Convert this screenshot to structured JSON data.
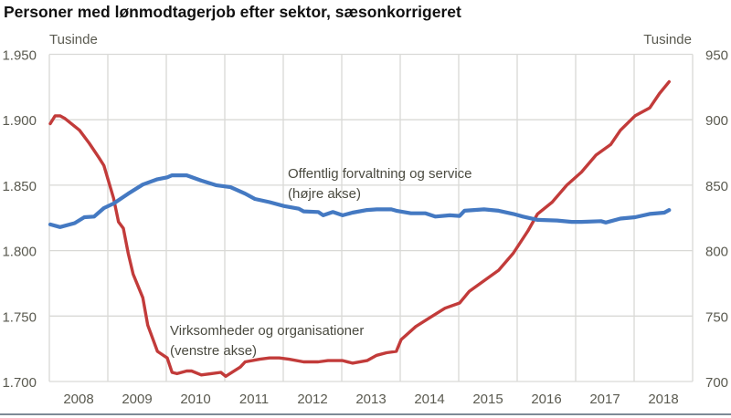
{
  "chart_data": {
    "type": "line",
    "title": "Personer med lønmodtagerjob efter sektor, sæsonkorrigeret",
    "left_axis": {
      "unit": "Tusinde",
      "ylim": [
        1700,
        1950
      ],
      "ticks": [
        "1.700",
        "1.750",
        "1.800",
        "1.850",
        "1.900",
        "1.950"
      ],
      "tick_values": [
        1700,
        1750,
        1800,
        1850,
        1900,
        1950
      ]
    },
    "right_axis": {
      "unit": "Tusinde",
      "ylim": [
        700,
        950
      ],
      "ticks": [
        "700",
        "750",
        "800",
        "850",
        "900",
        "950"
      ],
      "tick_values": [
        700,
        750,
        800,
        850,
        900,
        950
      ]
    },
    "x_ticks": [
      "2008",
      "2009",
      "2010",
      "2011",
      "2012",
      "2013",
      "2014",
      "2015",
      "2016",
      "2017",
      "2018"
    ],
    "xlim": [
      "2008-01",
      "2018-12"
    ],
    "grid": true,
    "series": [
      {
        "name": "Virksomheder og organisationer",
        "name_line2": "(venstre akse)",
        "axis": "left",
        "color": "#C23B3A",
        "points": [
          [
            "2008-01",
            1897
          ],
          [
            "2008-02",
            1903
          ],
          [
            "2008-03",
            1903
          ],
          [
            "2008-04",
            1901
          ],
          [
            "2008-07",
            1892
          ],
          [
            "2008-09",
            1882
          ],
          [
            "2008-11",
            1871
          ],
          [
            "2008-12",
            1865
          ],
          [
            "2009-02",
            1840
          ],
          [
            "2009-03",
            1822
          ],
          [
            "2009-04",
            1817
          ],
          [
            "2009-05",
            1798
          ],
          [
            "2009-06",
            1782
          ],
          [
            "2009-08",
            1764
          ],
          [
            "2009-09",
            1743
          ],
          [
            "2009-11",
            1723
          ],
          [
            "2010-01",
            1718
          ],
          [
            "2010-02",
            1707
          ],
          [
            "2010-03",
            1706
          ],
          [
            "2010-05",
            1708
          ],
          [
            "2010-06",
            1708
          ],
          [
            "2010-08",
            1705
          ],
          [
            "2010-10",
            1706
          ],
          [
            "2010-12",
            1707
          ],
          [
            "2011-01",
            1704
          ],
          [
            "2011-04",
            1711
          ],
          [
            "2011-05",
            1715
          ],
          [
            "2011-08",
            1717
          ],
          [
            "2011-10",
            1718
          ],
          [
            "2011-12",
            1718
          ],
          [
            "2012-02",
            1717
          ],
          [
            "2012-05",
            1715
          ],
          [
            "2012-08",
            1715
          ],
          [
            "2012-10",
            1716
          ],
          [
            "2013-01",
            1716
          ],
          [
            "2013-03",
            1714
          ],
          [
            "2013-06",
            1716
          ],
          [
            "2013-08",
            1720
          ],
          [
            "2013-10",
            1722
          ],
          [
            "2013-12",
            1723
          ],
          [
            "2014-01",
            1732
          ],
          [
            "2014-04",
            1742
          ],
          [
            "2014-07",
            1749
          ],
          [
            "2014-10",
            1756
          ],
          [
            "2015-01",
            1760
          ],
          [
            "2015-03",
            1769
          ],
          [
            "2015-06",
            1777
          ],
          [
            "2015-09",
            1785
          ],
          [
            "2015-12",
            1798
          ],
          [
            "2016-03",
            1815
          ],
          [
            "2016-05",
            1828
          ],
          [
            "2016-08",
            1837
          ],
          [
            "2016-11",
            1850
          ],
          [
            "2017-02",
            1860
          ],
          [
            "2017-05",
            1873
          ],
          [
            "2017-08",
            1881
          ],
          [
            "2017-10",
            1892
          ],
          [
            "2018-01",
            1903
          ],
          [
            "2018-04",
            1909
          ],
          [
            "2018-06",
            1920
          ],
          [
            "2018-08",
            1929
          ]
        ]
      },
      {
        "name": "Offentlig forvaltning og service",
        "name_line2": "(højre akse)",
        "axis": "right",
        "color": "#4479C2",
        "points": [
          [
            "2008-01",
            820
          ],
          [
            "2008-03",
            818
          ],
          [
            "2008-06",
            821
          ],
          [
            "2008-08",
            825.5
          ],
          [
            "2008-10",
            826
          ],
          [
            "2008-12",
            832.5
          ],
          [
            "2009-02",
            836
          ],
          [
            "2009-05",
            843.5
          ],
          [
            "2009-08",
            850.5
          ],
          [
            "2009-11",
            854.5
          ],
          [
            "2010-01",
            856
          ],
          [
            "2010-02",
            857.5
          ],
          [
            "2010-05",
            857.5
          ],
          [
            "2010-08",
            853.5
          ],
          [
            "2010-11",
            850
          ],
          [
            "2011-02",
            848.5
          ],
          [
            "2011-05",
            843.5
          ],
          [
            "2011-07",
            839.5
          ],
          [
            "2011-10",
            837
          ],
          [
            "2012-01",
            834
          ],
          [
            "2012-04",
            832
          ],
          [
            "2012-05",
            830
          ],
          [
            "2012-08",
            829.5
          ],
          [
            "2012-09",
            827
          ],
          [
            "2012-11",
            829.5
          ],
          [
            "2013-01",
            827
          ],
          [
            "2013-03",
            829
          ],
          [
            "2013-06",
            831
          ],
          [
            "2013-08",
            831.5
          ],
          [
            "2013-11",
            831.5
          ],
          [
            "2013-12",
            830.5
          ],
          [
            "2014-03",
            828.5
          ],
          [
            "2014-06",
            828.5
          ],
          [
            "2014-08",
            826
          ],
          [
            "2014-11",
            827
          ],
          [
            "2015-01",
            826.5
          ],
          [
            "2015-02",
            830.5
          ],
          [
            "2015-04",
            831
          ],
          [
            "2015-06",
            831.5
          ],
          [
            "2015-09",
            830.5
          ],
          [
            "2015-12",
            828
          ],
          [
            "2016-02",
            826
          ],
          [
            "2016-05",
            823.5
          ],
          [
            "2016-09",
            823
          ],
          [
            "2016-12",
            822
          ],
          [
            "2017-02",
            822
          ],
          [
            "2017-06",
            822.5
          ],
          [
            "2017-07",
            821.5
          ],
          [
            "2017-10",
            824.5
          ],
          [
            "2018-01",
            825.5
          ],
          [
            "2018-04",
            828
          ],
          [
            "2018-07",
            829
          ],
          [
            "2018-08",
            831
          ]
        ]
      }
    ]
  }
}
